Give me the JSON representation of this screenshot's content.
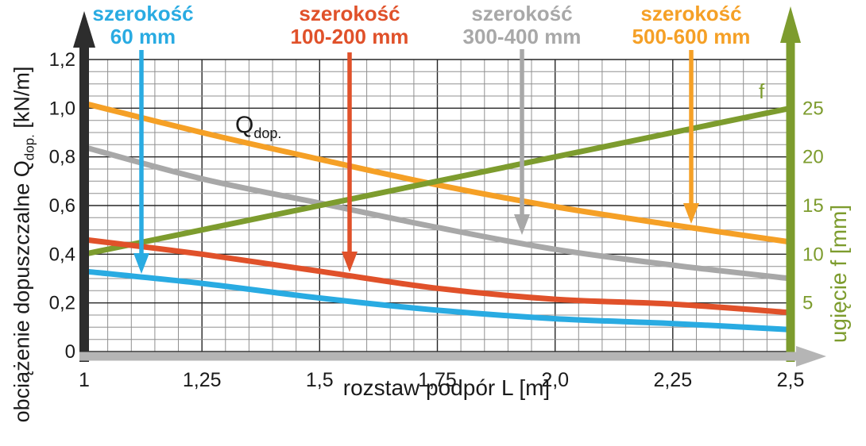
{
  "legend": [
    {
      "line1": "szerokość",
      "line2": "60 mm",
      "color": "#29abe2"
    },
    {
      "line1": "szerokość",
      "line2": "100-200 mm",
      "color": "#e0512a"
    },
    {
      "line1": "szerokość",
      "line2": "300-400 mm",
      "color": "#a8a8a8"
    },
    {
      "line1": "szerokość",
      "line2": "500-600 mm",
      "color": "#f5a026"
    }
  ],
  "annotations": {
    "q_main": "Q",
    "q_sub": "dop.",
    "f_label": "f"
  },
  "axes": {
    "left": {
      "title_prefix": "obciążenie dopuszczalne Q",
      "title_sub": "dop.",
      "title_suffix": " [kN/m]",
      "color": "#2d2d2d"
    },
    "right": {
      "title": "ugięcie f [mm]",
      "color": "#7d9c2e"
    },
    "x": {
      "title": "rozstaw podpór L [m]",
      "color": "#b5b5b5"
    }
  },
  "chart_data": {
    "type": "line",
    "title": "",
    "xlabel": "rozstaw podpór L [m]",
    "x": [
      1,
      1.25,
      1.5,
      1.75,
      2.0,
      2.25,
      2.5
    ],
    "x_tick_labels": [
      "1",
      "1,25",
      "1,5",
      "1,75",
      "2,0",
      "2,25",
      "2,5"
    ],
    "xlim": [
      1,
      2.5
    ],
    "left_axis": {
      "label": "obciążenie dopuszczalne Qdop. [kN/m]",
      "range": [
        0,
        1.2
      ],
      "tick_values": [
        1.2,
        1.0,
        0.8,
        0.6,
        0.4,
        0.2,
        0
      ],
      "tick_labels": [
        "1,2",
        "1,0",
        "0,8",
        "0,6",
        "0,4",
        "0,2",
        "0"
      ],
      "color": "#1a1a1a"
    },
    "right_axis": {
      "label": "ugięcie f [mm]",
      "range": [
        0,
        30
      ],
      "tick_values": [
        25,
        20,
        15,
        10,
        5
      ],
      "tick_labels": [
        "25",
        "20",
        "15",
        "10",
        "5"
      ],
      "color": "#7d9c2e"
    },
    "grid": {
      "on": true,
      "minor_step_x": 0.05,
      "minor_step_y": 0.05,
      "major_step_x": 0.25,
      "major_step_y": 0.2,
      "minor_color": "#909090",
      "major_color": "#262626"
    },
    "series": [
      {
        "name": "szerokość 500-600 mm",
        "axis": "left",
        "color": "#f5a026",
        "straight": false,
        "values": [
          1.02,
          0.9,
          0.79,
          0.685,
          0.595,
          0.52,
          0.45
        ]
      },
      {
        "name": "szerokość 300-400 mm",
        "axis": "left",
        "color": "#a8a8a8",
        "straight": false,
        "values": [
          0.84,
          0.71,
          0.61,
          0.51,
          0.42,
          0.355,
          0.3
        ]
      },
      {
        "name": "ugięcie f",
        "axis": "right",
        "color": "#7d9c2e",
        "straight": true,
        "values": [
          10,
          12.5,
          15,
          17.5,
          20,
          22.5,
          25
        ]
      },
      {
        "name": "szerokość 100-200 mm",
        "axis": "left",
        "color": "#e0512a",
        "straight": false,
        "values": [
          0.46,
          0.4,
          0.33,
          0.26,
          0.215,
          0.195,
          0.16
        ]
      },
      {
        "name": "szerokość 60 mm",
        "axis": "left",
        "color": "#29abe2",
        "straight": false,
        "values": [
          0.33,
          0.28,
          0.22,
          0.17,
          0.135,
          0.115,
          0.09
        ]
      }
    ],
    "legend_position": "top"
  }
}
